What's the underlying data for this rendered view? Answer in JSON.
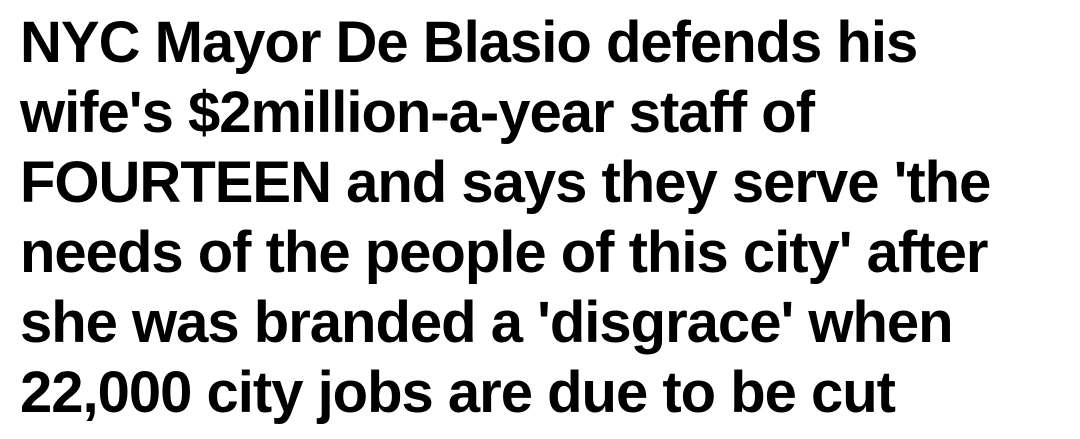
{
  "headline": {
    "lines": [
      "NYC Mayor De Blasio defends his",
      "wife's $2million-a-year staff of",
      "FOURTEEN and says they serve 'the",
      "needs of the people of this city' after",
      "she was branded a 'disgrace' when",
      "22,000 city jobs are due to be cut"
    ]
  }
}
